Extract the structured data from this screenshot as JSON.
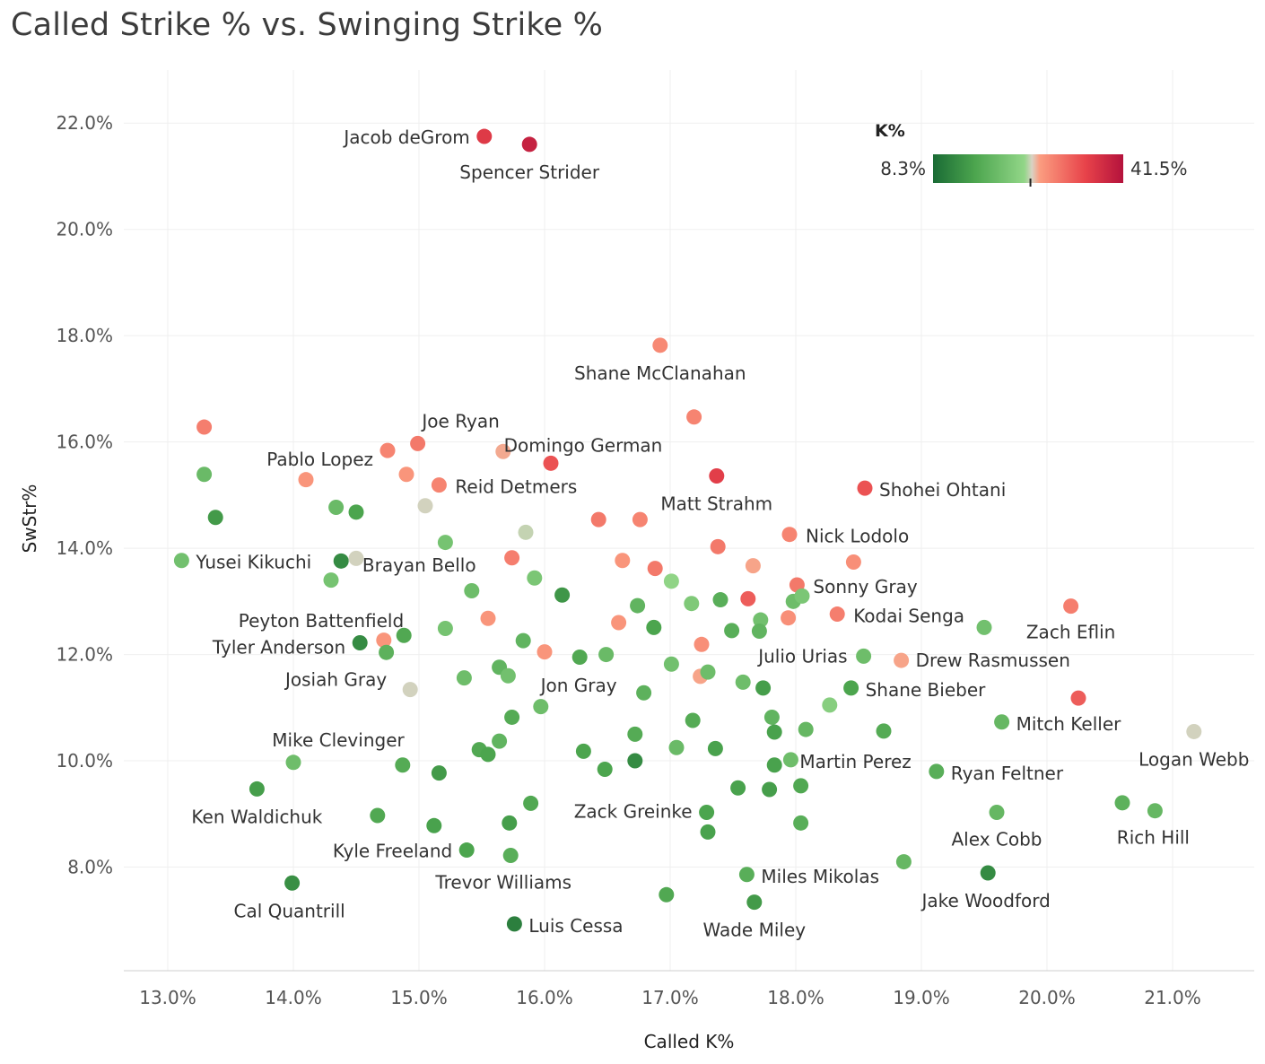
{
  "chart_data": {
    "type": "scatter",
    "title": "Called Strike % vs. Swinging Strike %",
    "xlabel": "Called K%",
    "ylabel": "SwStr%",
    "xlim": [
      12.65,
      21.65
    ],
    "ylim": [
      6.05,
      23.0
    ],
    "x_ticks": [
      {
        "value": 13.0,
        "label": "13.0%"
      },
      {
        "value": 14.0,
        "label": "14.0%"
      },
      {
        "value": 15.0,
        "label": "15.0%"
      },
      {
        "value": 16.0,
        "label": "16.0%"
      },
      {
        "value": 17.0,
        "label": "17.0%"
      },
      {
        "value": 18.0,
        "label": "18.0%"
      },
      {
        "value": 19.0,
        "label": "19.0%"
      },
      {
        "value": 20.0,
        "label": "20.0%"
      },
      {
        "value": 21.0,
        "label": "21.0%"
      }
    ],
    "y_ticks": [
      {
        "value": 8.0,
        "label": "8.0%"
      },
      {
        "value": 10.0,
        "label": "10.0%"
      },
      {
        "value": 12.0,
        "label": "12.0%"
      },
      {
        "value": 14.0,
        "label": "14.0%"
      },
      {
        "value": 16.0,
        "label": "16.0%"
      },
      {
        "value": 18.0,
        "label": "18.0%"
      },
      {
        "value": 20.0,
        "label": "20.0%"
      },
      {
        "value": 22.0,
        "label": "22.0%"
      }
    ],
    "grid": true,
    "legend": {
      "title": "K%",
      "min_label": "8.3%",
      "max_label": "41.5%",
      "min": 8.3,
      "max": 41.5,
      "center": 25.3,
      "colors": [
        "#1a6b35",
        "#4ca54e",
        "#92d688",
        "#d9d2c4",
        "#fb9d80",
        "#e8434a",
        "#b4123c"
      ],
      "placement": "top-right"
    },
    "points": [
      {
        "x": 15.52,
        "y": 21.75,
        "k": 36.5,
        "label": "Jacob deGrom"
      },
      {
        "x": 15.88,
        "y": 21.6,
        "k": 39.5,
        "label": "Spencer Strider"
      },
      {
        "x": 16.92,
        "y": 17.82,
        "k": 29.0,
        "label": "Shane McClanahan"
      },
      {
        "x": 17.19,
        "y": 16.47,
        "k": 29.5,
        "label": ""
      },
      {
        "x": 13.29,
        "y": 16.28,
        "k": 30.0,
        "label": ""
      },
      {
        "x": 14.99,
        "y": 15.97,
        "k": 30.5,
        "label": "Joe Ryan"
      },
      {
        "x": 14.75,
        "y": 15.84,
        "k": 29.5,
        "label": "Pablo Lopez"
      },
      {
        "x": 15.67,
        "y": 15.82,
        "k": 26.8,
        "label": ""
      },
      {
        "x": 16.05,
        "y": 15.6,
        "k": 34.0,
        "label": "Domingo German"
      },
      {
        "x": 17.37,
        "y": 15.36,
        "k": 36.0,
        "label": "Matt Strahm"
      },
      {
        "x": 18.55,
        "y": 15.13,
        "k": 34.0,
        "label": "Shohei Ohtani"
      },
      {
        "x": 13.29,
        "y": 15.39,
        "k": 19.5,
        "label": ""
      },
      {
        "x": 14.1,
        "y": 15.29,
        "k": 28.0,
        "label": ""
      },
      {
        "x": 14.9,
        "y": 15.39,
        "k": 28.0,
        "label": ""
      },
      {
        "x": 15.16,
        "y": 15.19,
        "k": 29.5,
        "label": "Reid Detmers"
      },
      {
        "x": 15.05,
        "y": 14.8,
        "k": 25.2,
        "label": ""
      },
      {
        "x": 14.34,
        "y": 14.77,
        "k": 19.5,
        "label": ""
      },
      {
        "x": 14.5,
        "y": 14.68,
        "k": 16.0,
        "label": ""
      },
      {
        "x": 13.38,
        "y": 14.58,
        "k": 14.5,
        "label": ""
      },
      {
        "x": 16.43,
        "y": 14.54,
        "k": 30.5,
        "label": ""
      },
      {
        "x": 16.76,
        "y": 14.54,
        "k": 29.5,
        "label": ""
      },
      {
        "x": 15.21,
        "y": 14.11,
        "k": 21.0,
        "label": ""
      },
      {
        "x": 15.85,
        "y": 14.3,
        "k": 25.0,
        "label": ""
      },
      {
        "x": 17.38,
        "y": 14.03,
        "k": 30.5,
        "label": ""
      },
      {
        "x": 17.95,
        "y": 14.26,
        "k": 29.5,
        "label": "Nick Lodolo"
      },
      {
        "x": 13.11,
        "y": 13.77,
        "k": 20.5,
        "label": "Yusei Kikuchi"
      },
      {
        "x": 14.38,
        "y": 13.76,
        "k": 12.5,
        "label": ""
      },
      {
        "x": 14.5,
        "y": 13.81,
        "k": 25.2,
        "label": ""
      },
      {
        "x": 15.74,
        "y": 13.82,
        "k": 30.0,
        "label": "Brayan Bello"
      },
      {
        "x": 16.62,
        "y": 13.77,
        "k": 28.0,
        "label": ""
      },
      {
        "x": 16.88,
        "y": 13.62,
        "k": 30.5,
        "label": ""
      },
      {
        "x": 17.66,
        "y": 13.67,
        "k": 27.0,
        "label": ""
      },
      {
        "x": 18.46,
        "y": 13.74,
        "k": 28.5,
        "label": ""
      },
      {
        "x": 14.3,
        "y": 13.4,
        "k": 21.0,
        "label": ""
      },
      {
        "x": 15.42,
        "y": 13.2,
        "k": 20.0,
        "label": ""
      },
      {
        "x": 15.92,
        "y": 13.44,
        "k": 21.5,
        "label": ""
      },
      {
        "x": 16.14,
        "y": 13.12,
        "k": 14.0,
        "label": ""
      },
      {
        "x": 17.01,
        "y": 13.38,
        "k": 24.0,
        "label": ""
      },
      {
        "x": 17.17,
        "y": 12.96,
        "k": 22.0,
        "label": ""
      },
      {
        "x": 17.4,
        "y": 13.03,
        "k": 17.5,
        "label": ""
      },
      {
        "x": 17.62,
        "y": 13.05,
        "k": 33.0,
        "label": ""
      },
      {
        "x": 18.01,
        "y": 13.31,
        "k": 30.5,
        "label": "Sonny Gray"
      },
      {
        "x": 17.98,
        "y": 13.0,
        "k": 20.0,
        "label": ""
      },
      {
        "x": 18.05,
        "y": 13.1,
        "k": 21.5,
        "label": ""
      },
      {
        "x": 16.74,
        "y": 12.92,
        "k": 18.5,
        "label": ""
      },
      {
        "x": 17.72,
        "y": 12.65,
        "k": 20.5,
        "label": ""
      },
      {
        "x": 17.94,
        "y": 12.69,
        "k": 28.5,
        "label": ""
      },
      {
        "x": 18.33,
        "y": 12.76,
        "k": 30.0,
        "label": "Kodai Senga"
      },
      {
        "x": 15.55,
        "y": 12.68,
        "k": 28.0,
        "label": ""
      },
      {
        "x": 16.59,
        "y": 12.6,
        "k": 28.0,
        "label": ""
      },
      {
        "x": 16.87,
        "y": 12.51,
        "k": 16.0,
        "label": ""
      },
      {
        "x": 17.49,
        "y": 12.45,
        "k": 17.5,
        "label": ""
      },
      {
        "x": 17.71,
        "y": 12.44,
        "k": 18.5,
        "label": ""
      },
      {
        "x": 19.5,
        "y": 12.51,
        "k": 20.5,
        "label": ""
      },
      {
        "x": 20.19,
        "y": 12.91,
        "k": 30.0,
        "label": "Zach Eflin"
      },
      {
        "x": 14.88,
        "y": 12.36,
        "k": 16.5,
        "label": "Peyton Battenfield"
      },
      {
        "x": 14.72,
        "y": 12.27,
        "k": 28.0,
        "label": ""
      },
      {
        "x": 15.21,
        "y": 12.49,
        "k": 21.0,
        "label": ""
      },
      {
        "x": 14.53,
        "y": 12.22,
        "k": 12.5,
        "label": "Tyler Anderson"
      },
      {
        "x": 14.74,
        "y": 12.04,
        "k": 18.0,
        "label": ""
      },
      {
        "x": 15.83,
        "y": 12.26,
        "k": 18.5,
        "label": ""
      },
      {
        "x": 16.0,
        "y": 12.05,
        "k": 28.0,
        "label": ""
      },
      {
        "x": 16.28,
        "y": 11.95,
        "k": 16.5,
        "label": ""
      },
      {
        "x": 16.49,
        "y": 12.0,
        "k": 19.5,
        "label": ""
      },
      {
        "x": 17.25,
        "y": 12.19,
        "k": 28.5,
        "label": ""
      },
      {
        "x": 18.54,
        "y": 11.97,
        "k": 20.0,
        "label": "Julio Urias"
      },
      {
        "x": 18.84,
        "y": 11.89,
        "k": 27.0,
        "label": "Drew Rasmussen"
      },
      {
        "x": 14.93,
        "y": 11.34,
        "k": 25.2,
        "label": "Josiah Gray"
      },
      {
        "x": 15.36,
        "y": 11.56,
        "k": 20.0,
        "label": ""
      },
      {
        "x": 15.64,
        "y": 11.76,
        "k": 18.5,
        "label": ""
      },
      {
        "x": 15.71,
        "y": 11.6,
        "k": 20.5,
        "label": ""
      },
      {
        "x": 17.01,
        "y": 11.82,
        "k": 20.5,
        "label": ""
      },
      {
        "x": 17.24,
        "y": 11.59,
        "k": 27.0,
        "label": ""
      },
      {
        "x": 17.3,
        "y": 11.67,
        "k": 20.0,
        "label": ""
      },
      {
        "x": 17.58,
        "y": 11.48,
        "k": 20.0,
        "label": ""
      },
      {
        "x": 17.74,
        "y": 11.37,
        "k": 15.0,
        "label": ""
      },
      {
        "x": 16.79,
        "y": 11.28,
        "k": 18.0,
        "label": "Jon Gray"
      },
      {
        "x": 18.44,
        "y": 11.37,
        "k": 16.0,
        "label": "Shane Bieber"
      },
      {
        "x": 18.27,
        "y": 11.05,
        "k": 23.0,
        "label": ""
      },
      {
        "x": 15.97,
        "y": 11.02,
        "k": 20.0,
        "label": ""
      },
      {
        "x": 15.74,
        "y": 10.82,
        "k": 17.0,
        "label": ""
      },
      {
        "x": 17.18,
        "y": 10.76,
        "k": 17.0,
        "label": ""
      },
      {
        "x": 17.81,
        "y": 10.82,
        "k": 18.5,
        "label": ""
      },
      {
        "x": 17.83,
        "y": 10.54,
        "k": 15.5,
        "label": ""
      },
      {
        "x": 18.08,
        "y": 10.59,
        "k": 19.0,
        "label": ""
      },
      {
        "x": 18.7,
        "y": 10.56,
        "k": 17.0,
        "label": ""
      },
      {
        "x": 19.64,
        "y": 10.73,
        "k": 19.0,
        "label": "Mitch Keller"
      },
      {
        "x": 20.25,
        "y": 11.18,
        "k": 33.0,
        "label": ""
      },
      {
        "x": 21.17,
        "y": 10.55,
        "k": 25.2,
        "label": "Logan Webb"
      },
      {
        "x": 16.72,
        "y": 10.5,
        "k": 17.0,
        "label": ""
      },
      {
        "x": 15.64,
        "y": 10.37,
        "k": 18.5,
        "label": ""
      },
      {
        "x": 15.48,
        "y": 10.21,
        "k": 16.5,
        "label": ""
      },
      {
        "x": 15.55,
        "y": 10.12,
        "k": 16.0,
        "label": ""
      },
      {
        "x": 16.31,
        "y": 10.18,
        "k": 16.0,
        "label": ""
      },
      {
        "x": 17.05,
        "y": 10.25,
        "k": 19.5,
        "label": ""
      },
      {
        "x": 17.36,
        "y": 10.23,
        "k": 15.5,
        "label": ""
      },
      {
        "x": 14.0,
        "y": 9.97,
        "k": 20.0,
        "label": "Mike Clevinger"
      },
      {
        "x": 14.87,
        "y": 9.92,
        "k": 17.0,
        "label": ""
      },
      {
        "x": 15.16,
        "y": 9.77,
        "k": 14.5,
        "label": ""
      },
      {
        "x": 16.48,
        "y": 9.84,
        "k": 16.0,
        "label": ""
      },
      {
        "x": 16.72,
        "y": 10.0,
        "k": 12.5,
        "label": ""
      },
      {
        "x": 17.83,
        "y": 9.92,
        "k": 15.5,
        "label": ""
      },
      {
        "x": 17.96,
        "y": 10.02,
        "k": 20.0,
        "label": "Martin Perez"
      },
      {
        "x": 19.12,
        "y": 9.8,
        "k": 17.5,
        "label": "Ryan Feltner"
      },
      {
        "x": 13.71,
        "y": 9.47,
        "k": 15.0,
        "label": "Ken Waldichuk"
      },
      {
        "x": 17.54,
        "y": 9.49,
        "k": 15.5,
        "label": ""
      },
      {
        "x": 17.79,
        "y": 9.46,
        "k": 15.0,
        "label": ""
      },
      {
        "x": 18.04,
        "y": 9.53,
        "k": 16.5,
        "label": ""
      },
      {
        "x": 14.67,
        "y": 8.97,
        "k": 16.5,
        "label": ""
      },
      {
        "x": 15.89,
        "y": 9.2,
        "k": 16.5,
        "label": ""
      },
      {
        "x": 17.29,
        "y": 9.03,
        "k": 16.0,
        "label": "Zack Greinke"
      },
      {
        "x": 15.12,
        "y": 8.78,
        "k": 15.5,
        "label": ""
      },
      {
        "x": 15.72,
        "y": 8.83,
        "k": 15.0,
        "label": ""
      },
      {
        "x": 18.04,
        "y": 8.83,
        "k": 17.5,
        "label": ""
      },
      {
        "x": 19.6,
        "y": 9.03,
        "k": 19.0,
        "label": "Alex Cobb"
      },
      {
        "x": 20.6,
        "y": 9.21,
        "k": 18.0,
        "label": ""
      },
      {
        "x": 20.86,
        "y": 9.06,
        "k": 19.0,
        "label": "Rich Hill"
      },
      {
        "x": 17.3,
        "y": 8.66,
        "k": 15.5,
        "label": ""
      },
      {
        "x": 15.38,
        "y": 8.32,
        "k": 16.0,
        "label": "Kyle Freeland"
      },
      {
        "x": 15.73,
        "y": 8.22,
        "k": 17.5,
        "label": "Trevor Williams"
      },
      {
        "x": 18.86,
        "y": 8.1,
        "k": 19.0,
        "label": ""
      },
      {
        "x": 17.61,
        "y": 7.86,
        "k": 17.5,
        "label": "Miles Mikolas"
      },
      {
        "x": 19.53,
        "y": 7.89,
        "k": 12.5,
        "label": "Jake Woodford"
      },
      {
        "x": 13.99,
        "y": 7.7,
        "k": 13.0,
        "label": "Cal Quantrill"
      },
      {
        "x": 16.97,
        "y": 7.48,
        "k": 16.5,
        "label": ""
      },
      {
        "x": 17.67,
        "y": 7.34,
        "k": 14.5,
        "label": "Wade Miley"
      },
      {
        "x": 15.76,
        "y": 6.93,
        "k": 11.0,
        "label": "Luis Cessa"
      }
    ]
  }
}
